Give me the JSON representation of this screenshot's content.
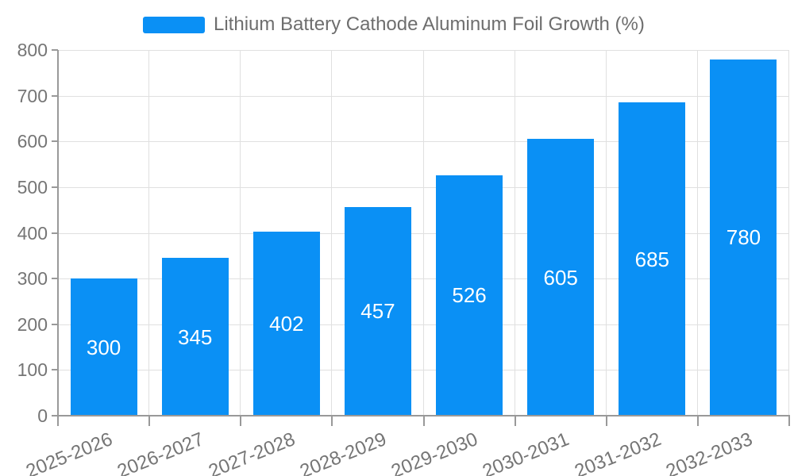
{
  "chart_data": {
    "type": "bar",
    "title": "Lithium Battery Cathode Aluminum Foil Growth (%)",
    "legend": [
      "Lithium Battery Cathode Aluminum Foil Growth (%)"
    ],
    "legend_position": "top",
    "categories": [
      "2025-2026",
      "2026-2027",
      "2027-2028",
      "2028-2029",
      "2029-2030",
      "2030-2031",
      "2031-2032",
      "2032-2033"
    ],
    "values": [
      300,
      345,
      402,
      457,
      526,
      605,
      685,
      780
    ],
    "value_labels": [
      "300",
      "345",
      "402",
      "457",
      "526",
      "605",
      "685",
      "780"
    ],
    "xlabel": "",
    "ylabel": "",
    "ylim": [
      0,
      800
    ],
    "y_ticks": [
      0,
      100,
      200,
      300,
      400,
      500,
      600,
      700,
      800
    ],
    "grid": true,
    "colors": {
      "bar": "#0a90f5",
      "grid": "#e0e0e0",
      "axis": "#999999",
      "tick_label": "#757575",
      "legend_text": "#6e6e6e",
      "value_label": "#ffffff",
      "background": "#ffffff"
    }
  }
}
